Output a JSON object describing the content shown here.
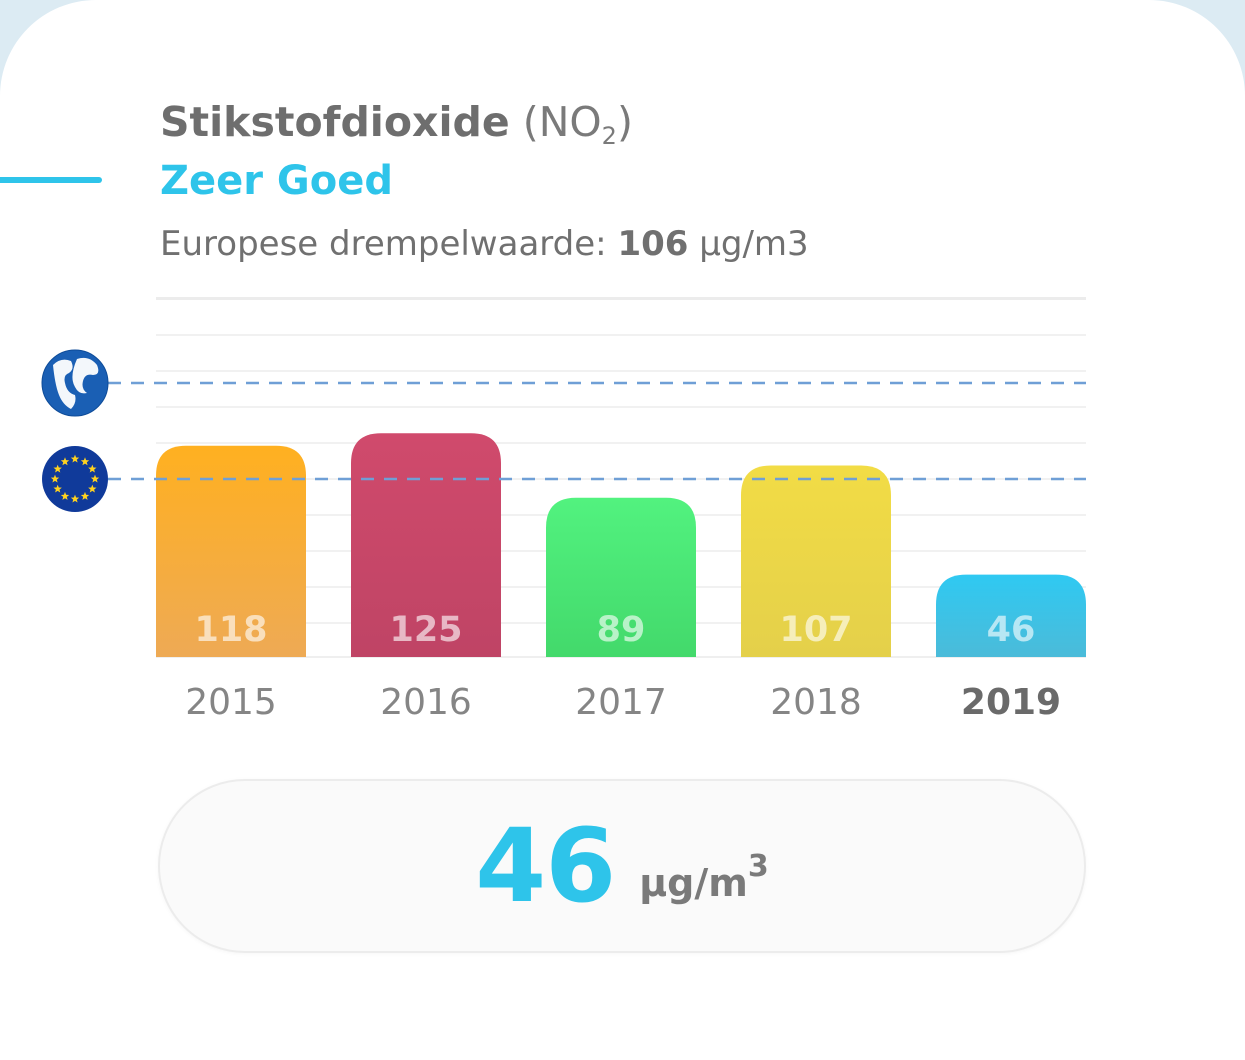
{
  "header": {
    "pollutant_name": "Stikstofdioxide",
    "formula_open": "(NO",
    "formula_sub": "2",
    "formula_close": ")",
    "status": "Zeer Goed",
    "threshold_label": "Europese drempelwaarde:",
    "threshold_value": "106",
    "threshold_unit": "µg/m3"
  },
  "colors": {
    "accent": "#2ec4ea",
    "reference_line": "#6f9fd6",
    "globe_blue": "#1a5fb4",
    "eu_blue": "#103a9a",
    "eu_star": "#ffd21f"
  },
  "icons": {
    "who_reference": "globe-icon",
    "eu_reference": "eu-flag-icon"
  },
  "chart_data": {
    "type": "bar",
    "categories": [
      "2015",
      "2016",
      "2017",
      "2018",
      "2019"
    ],
    "values": [
      118,
      125,
      89,
      107,
      46
    ],
    "highlight_category": "2019",
    "bar_colors": [
      [
        "#ffb020",
        "#eeaa55"
      ],
      [
        "#d04a6c",
        "#bf4465"
      ],
      [
        "#52f27f",
        "#43d96b"
      ],
      [
        "#f2dc45",
        "#e4d04a"
      ],
      [
        "#2fc9f2",
        "#4bbbd9"
      ]
    ],
    "reference_lines": [
      {
        "icon": "globe-icon"
      },
      {
        "icon": "eu-flag-icon"
      }
    ],
    "grid": true,
    "legend": "none"
  },
  "current": {
    "value": "46",
    "unit": "µg/m",
    "unit_exp": "3"
  }
}
